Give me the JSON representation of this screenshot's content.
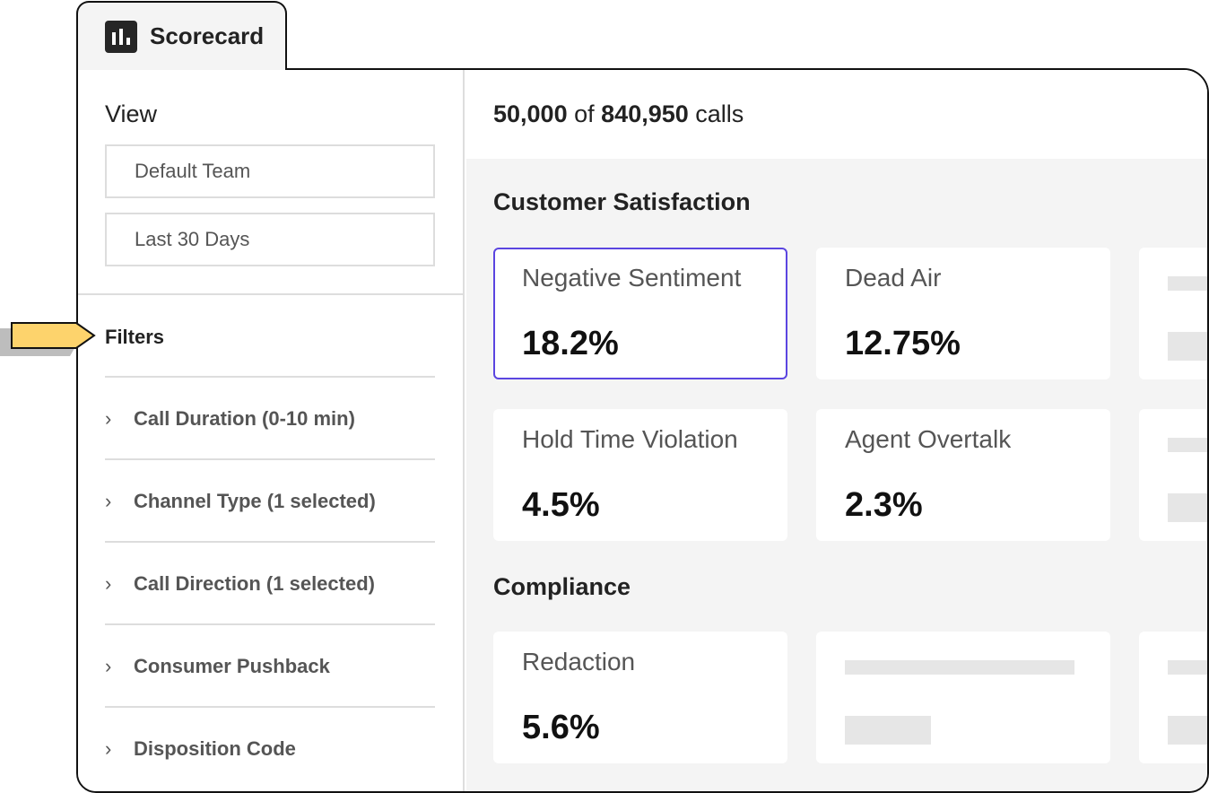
{
  "tab": {
    "label": "Scorecard",
    "icon": "bar-chart-icon"
  },
  "sidebar": {
    "view_heading": "View",
    "team": "Default Team",
    "range": "Last 30 Days",
    "filters_heading": "Filters",
    "filters": [
      {
        "label": "Call Duration (0-10 min)"
      },
      {
        "label": "Channel Type (1 selected)"
      },
      {
        "label": "Call Direction (1 selected)"
      },
      {
        "label": "Consumer Pushback"
      },
      {
        "label": "Disposition Code"
      }
    ]
  },
  "header": {
    "shown": "50,000",
    "of": "of",
    "total": "840,950",
    "unit": "calls"
  },
  "sections": [
    {
      "title": "Customer Satisfaction",
      "cards": [
        {
          "title": "Negative Sentiment",
          "value": "18.2%"
        },
        {
          "title": "Dead Air",
          "value": "12.75%"
        },
        {
          "title": "Hold Time Violation",
          "value": "4.5%"
        },
        {
          "title": "Agent Overtalk",
          "value": "2.3%"
        }
      ]
    },
    {
      "title": "Compliance",
      "cards": [
        {
          "title": "Redaction",
          "value": "5.6%"
        }
      ]
    }
  ],
  "colors": {
    "selected_card_border": "#5b45e0",
    "pointer_arrow": "#fdd36c"
  }
}
